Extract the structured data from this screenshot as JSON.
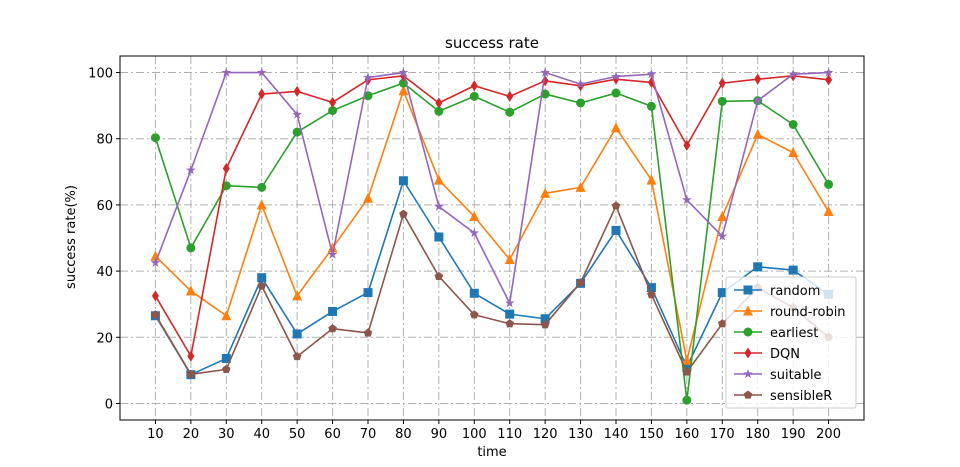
{
  "chart_data": {
    "type": "line",
    "title": "success rate",
    "xlabel": "time",
    "ylabel": "success rate(%)",
    "x": [
      10,
      20,
      30,
      40,
      50,
      60,
      70,
      80,
      90,
      100,
      110,
      120,
      130,
      140,
      150,
      160,
      170,
      180,
      190,
      200
    ],
    "ylim": [
      -5,
      105
    ],
    "yticks": [
      0,
      20,
      40,
      60,
      80,
      100
    ],
    "grid": true,
    "grid_style": "dash-dot",
    "legend_position": "lower right",
    "series": [
      {
        "name": "random",
        "color": "#1f77b4",
        "marker": "square",
        "values": [
          26.5,
          8.7,
          13.6,
          38.0,
          21.0,
          27.8,
          33.5,
          67.3,
          50.3,
          33.3,
          27.0,
          25.6,
          36.3,
          52.3,
          35.0,
          11.0,
          33.5,
          41.3,
          40.3,
          33.0
        ]
      },
      {
        "name": "round-robin",
        "color": "#ff7f0e",
        "marker": "triangle",
        "values": [
          44.5,
          34.0,
          26.5,
          60.0,
          32.5,
          47.0,
          62.0,
          94.5,
          67.5,
          56.5,
          43.5,
          63.5,
          65.3,
          83.3,
          67.5,
          13.0,
          56.5,
          81.3,
          75.8,
          58.0
        ]
      },
      {
        "name": "earliest",
        "color": "#2ca02c",
        "marker": "circle",
        "values": [
          80.3,
          47.0,
          65.8,
          65.3,
          82.0,
          88.5,
          93.0,
          96.8,
          88.3,
          92.8,
          88.0,
          93.5,
          90.8,
          93.8,
          89.8,
          1.0,
          91.3,
          91.5,
          84.3,
          66.2
        ]
      },
      {
        "name": "DQN",
        "color": "#d62728",
        "marker": "diamond",
        "values": [
          32.5,
          14.3,
          71.0,
          93.5,
          94.3,
          91.0,
          97.8,
          99.0,
          90.8,
          96.0,
          92.8,
          97.5,
          96.0,
          98.0,
          97.0,
          78.0,
          96.8,
          98.0,
          99.0,
          97.8
        ]
      },
      {
        "name": "suitable",
        "color": "#9467bd",
        "marker": "star",
        "values": [
          42.5,
          70.5,
          100.0,
          100.0,
          87.3,
          45.0,
          98.5,
          100.0,
          59.5,
          51.5,
          30.3,
          100.0,
          96.5,
          98.8,
          99.5,
          61.5,
          50.5,
          91.5,
          99.5,
          100.0
        ]
      },
      {
        "name": "sensibleR",
        "color": "#8c564b",
        "marker": "pentagon",
        "values": [
          26.8,
          8.8,
          10.3,
          35.5,
          14.2,
          22.6,
          21.3,
          57.2,
          38.4,
          26.8,
          24.1,
          23.8,
          36.5,
          59.7,
          32.9,
          9.5,
          24.1,
          35.0,
          29.0,
          20.0
        ]
      }
    ]
  }
}
